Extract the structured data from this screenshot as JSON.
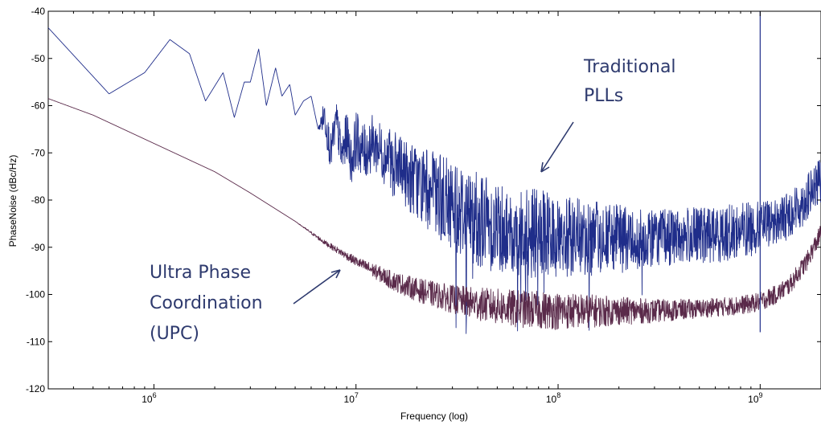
{
  "chart_data": {
    "type": "line",
    "title": "",
    "xlabel": "Frequency (log)",
    "ylabel": "PhaseNoise (dBc/Hz)",
    "xscale": "log",
    "xlim": [
      300000,
      2000000000
    ],
    "ylim": [
      -120,
      -40
    ],
    "grid": false,
    "x_ticks": [
      {
        "value": 1000000,
        "base": "10",
        "exp": "6"
      },
      {
        "value": 10000000,
        "base": "10",
        "exp": "7"
      },
      {
        "value": 100000000,
        "base": "10",
        "exp": "8"
      },
      {
        "value": 1000000000,
        "base": "10",
        "exp": "9"
      }
    ],
    "y_ticks": [
      -40,
      -50,
      -60,
      -70,
      -80,
      -90,
      -100,
      -110,
      -120
    ],
    "colors": {
      "traditional": "#1f2d8a",
      "upc": "#5a2a4a",
      "annotation": "#2e3a6e"
    },
    "series": [
      {
        "key": "traditional",
        "x": [
          300000,
          600000,
          900000,
          1200000,
          1500000,
          1800000,
          2200000,
          2500000,
          2800000,
          3000000,
          3300000,
          3600000,
          4000000,
          4300000,
          4700000,
          5000000,
          5500000,
          6000000,
          6500000,
          7000000,
          7500000,
          8000000,
          8500000,
          9000000,
          9500000,
          10000000,
          11000000,
          12000000,
          13000000,
          14000000,
          15000000,
          17000000,
          20000000,
          25000000,
          30000000,
          40000000,
          50000000,
          70000000,
          100000000,
          150000000,
          200000000,
          300000000,
          500000000,
          700000000,
          900000000,
          1000000000,
          1300000000,
          1600000000,
          2000000000
        ],
        "values": [
          -43.5,
          -57.5,
          -53,
          -46,
          -49,
          -59,
          -53,
          -62.5,
          -55,
          -55,
          -48,
          -60,
          -52,
          -58,
          -55.5,
          -62,
          -59,
          -58,
          -65,
          -62,
          -70,
          -63,
          -71,
          -66,
          -72,
          -67,
          -70,
          -68,
          -69,
          -71,
          -72,
          -74,
          -76,
          -79,
          -81,
          -84,
          -85.5,
          -87,
          -88,
          -88,
          -88,
          -88,
          -87.5,
          -87,
          -86,
          -85.5,
          -84,
          -81,
          -76
        ],
        "noise_band": [
          0,
          0,
          0,
          0,
          0,
          0,
          0,
          0,
          0,
          0,
          0,
          0,
          0,
          0,
          0,
          0,
          0,
          0,
          0,
          4,
          4,
          4,
          5,
          5,
          5,
          6,
          6,
          6,
          6,
          6,
          7,
          7,
          8,
          9,
          10,
          10,
          10,
          10,
          9,
          8,
          7,
          6,
          6,
          6,
          6,
          5,
          5,
          5,
          5
        ]
      },
      {
        "key": "upc",
        "x": [
          300000,
          500000,
          1000000,
          2000000,
          3000000,
          5000000,
          7000000,
          10000000,
          15000000,
          20000000,
          30000000,
          40000000,
          60000000,
          100000000,
          150000000,
          200000000,
          300000000,
          500000000,
          700000000,
          900000000,
          1000000000,
          1200000000,
          1400000000,
          1700000000,
          2000000000
        ],
        "values": [
          -58.5,
          -62,
          -68,
          -74,
          -78.5,
          -84.5,
          -89,
          -93,
          -97,
          -99,
          -101,
          -102,
          -103,
          -103.5,
          -103.5,
          -103.5,
          -103.5,
          -103,
          -102.5,
          -102,
          -101.5,
          -100,
          -98,
          -93,
          -87
        ],
        "noise_band": [
          0,
          0,
          0,
          0,
          0,
          0,
          0.5,
          1,
          2,
          2.5,
          3,
          3.5,
          4,
          4,
          3.5,
          3,
          2.5,
          2,
          2,
          2,
          2,
          2,
          2,
          2,
          2
        ]
      }
    ],
    "annotations": [
      {
        "lines": [
          "Traditional",
          "PLLs"
        ]
      },
      {
        "lines": [
          "Ultra Phase",
          "Coordination",
          "(UPC)"
        ]
      }
    ]
  }
}
